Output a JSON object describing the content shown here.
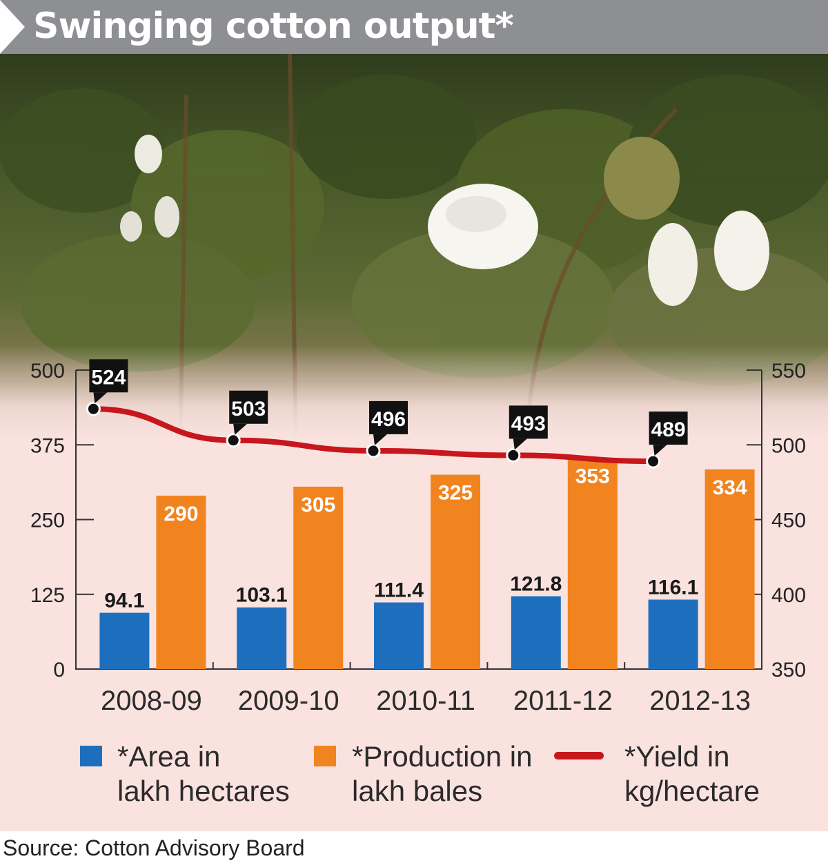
{
  "header": {
    "title": "Swinging cotton output*"
  },
  "source": "Source: Cotton Advisory Board",
  "colors": {
    "area": "#1d6fbe",
    "production": "#f2841f",
    "yield": "#c8161d",
    "title_band": "#8e8f92",
    "chart_bg": "#fae2df"
  },
  "chart_data": {
    "type": "bar",
    "title": "Swinging cotton output*",
    "categories": [
      "2008-09",
      "2009-10",
      "2010-11",
      "2011-12",
      "2012-13"
    ],
    "series": [
      {
        "name": "*Area in lakh hectares",
        "type": "bar",
        "axis": "left",
        "values": [
          94.1,
          103.1,
          111.4,
          121.8,
          116.1
        ],
        "labels": [
          "94.1",
          "103.1",
          "111.4",
          "121.8",
          "116.1"
        ]
      },
      {
        "name": "*Production in lakh bales",
        "type": "bar",
        "axis": "left",
        "values": [
          290,
          305,
          325,
          353,
          334
        ],
        "labels": [
          "290",
          "305",
          "325",
          "353",
          "334"
        ]
      },
      {
        "name": "*Yield in kg/hectare",
        "type": "line",
        "axis": "right",
        "values": [
          524,
          503,
          496,
          493,
          489
        ],
        "labels": [
          "524",
          "503",
          "496",
          "493",
          "489"
        ]
      }
    ],
    "y_left": {
      "range": [
        0,
        500
      ],
      "ticks": [
        0,
        125,
        250,
        375,
        500
      ],
      "tick_labels": [
        "0",
        "125",
        "250",
        "375",
        "500"
      ]
    },
    "y_right": {
      "range": [
        350,
        550
      ],
      "ticks": [
        350,
        400,
        450,
        500,
        550
      ],
      "tick_labels": [
        "350",
        "400",
        "450",
        "500",
        "550"
      ]
    },
    "legend": {
      "placement": "bottom",
      "items": [
        {
          "line1": "*Area in",
          "line2": "lakh hectares"
        },
        {
          "line1": "*Production in",
          "line2": "lakh bales"
        },
        {
          "line1": "*Yield in",
          "line2": "kg/hectare"
        }
      ]
    },
    "grid": false
  }
}
